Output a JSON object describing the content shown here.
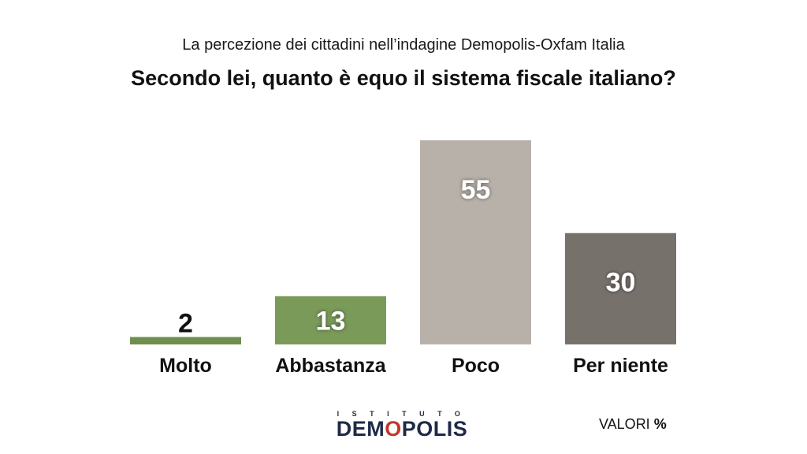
{
  "header": {
    "subtitle": "La percezione dei cittadini nell’indagine Demopolis-Oxfam Italia",
    "title": "Secondo lei, quanto è equo il sistema fiscale italiano?"
  },
  "chart_data": {
    "type": "bar",
    "title": "Secondo lei, quanto è equo il sistema fiscale italiano?",
    "subtitle": "La percezione dei cittadini nell’indagine Demopolis-Oxfam Italia",
    "categories": [
      "Molto",
      "Abbastanza",
      "Poco",
      "Per niente"
    ],
    "values": [
      2,
      13,
      55,
      30
    ],
    "colors": [
      "#6f8f4e",
      "#7a9a59",
      "#b8b1aa",
      "#77716c"
    ],
    "value_label_colors": [
      "#111111",
      "#ffffff",
      "#ffffff",
      "#ffffff"
    ],
    "ylim": [
      0,
      55
    ],
    "grid": false,
    "xlabel": "",
    "ylabel": ""
  },
  "footer": {
    "logo_top": "ISTITUTO",
    "logo_main_before": "DEM",
    "logo_main_o": "O",
    "logo_main_after": "POLIS",
    "unit_label": "VALORI",
    "unit_symbol": "%"
  }
}
